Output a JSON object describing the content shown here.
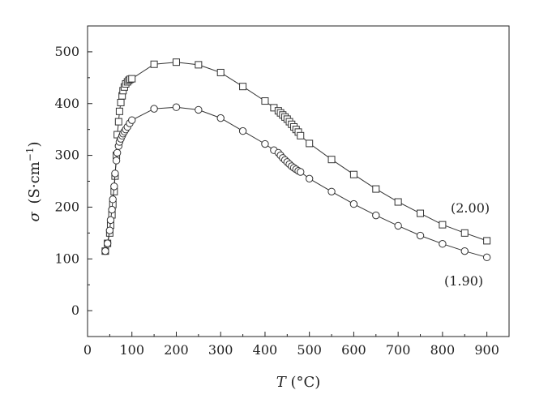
{
  "chart_data": {
    "type": "scatter",
    "xlabel_symbol": "T",
    "xlabel_unit": "(°C)",
    "ylabel_symbol": "σ",
    "ylabel_unit_main": "(S·cm",
    "ylabel_unit_sup": "−1",
    "ylabel_unit_close": ")",
    "xlim": [
      0,
      950
    ],
    "ylim": [
      -50,
      550
    ],
    "xticks": [
      0,
      100,
      200,
      300,
      400,
      500,
      600,
      700,
      800,
      900
    ],
    "yticks": [
      0,
      100,
      200,
      300,
      400,
      500
    ],
    "grid": false,
    "legend": "none",
    "series": [
      {
        "name": "(2.00)",
        "marker": "square",
        "x": [
          40,
          45,
          50,
          52,
          55,
          57,
          60,
          62,
          65,
          67,
          70,
          72,
          75,
          78,
          80,
          83,
          86,
          90,
          93,
          96,
          100,
          150,
          200,
          250,
          300,
          350,
          400,
          420,
          430,
          435,
          440,
          445,
          450,
          455,
          460,
          465,
          470,
          475,
          480,
          500,
          550,
          600,
          650,
          700,
          750,
          800,
          850,
          900
        ],
        "y": [
          115,
          130,
          150,
          165,
          185,
          205,
          230,
          260,
          300,
          340,
          365,
          385,
          402,
          415,
          425,
          432,
          438,
          442,
          445,
          447,
          448,
          476,
          480,
          475,
          460,
          433,
          405,
          392,
          386,
          382,
          378,
          374,
          370,
          365,
          360,
          355,
          350,
          345,
          338,
          323,
          292,
          263,
          235,
          210,
          188,
          166,
          150,
          135
        ]
      },
      {
        "name": "(1.90)",
        "marker": "circle",
        "x": [
          40,
          45,
          50,
          52,
          55,
          57,
          60,
          62,
          65,
          67,
          70,
          72,
          75,
          78,
          80,
          83,
          86,
          90,
          95,
          100,
          150,
          200,
          250,
          300,
          350,
          400,
          420,
          430,
          435,
          440,
          445,
          450,
          455,
          460,
          465,
          470,
          475,
          480,
          500,
          550,
          600,
          650,
          700,
          750,
          800,
          850,
          900
        ],
        "y": [
          115,
          130,
          155,
          175,
          195,
          215,
          240,
          265,
          290,
          305,
          318,
          326,
          332,
          338,
          342,
          346,
          350,
          355,
          362,
          368,
          390,
          393,
          388,
          372,
          347,
          322,
          310,
          305,
          300,
          295,
          291,
          287,
          283,
          279,
          276,
          273,
          270,
          268,
          255,
          230,
          206,
          184,
          164,
          145,
          129,
          115,
          103
        ]
      }
    ]
  }
}
